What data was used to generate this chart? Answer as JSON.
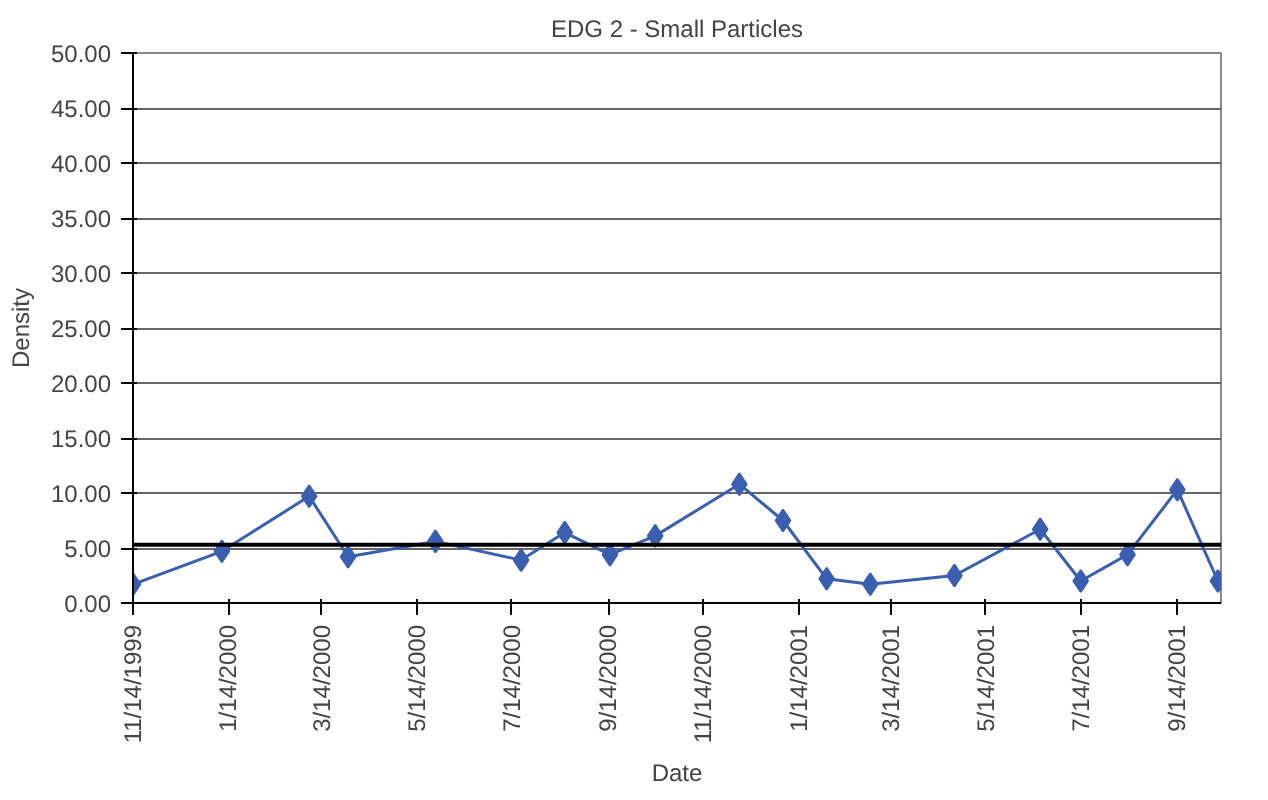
{
  "chart_data": {
    "type": "line",
    "title": "EDG 2 - Small Particles",
    "xlabel": "Date",
    "ylabel": "Density",
    "x": [
      "1999-11-14",
      "2000-01-10",
      "2000-03-06",
      "2000-03-31",
      "2000-05-26",
      "2000-07-20",
      "2000-08-17",
      "2000-09-15",
      "2000-10-14",
      "2000-12-07",
      "2001-01-04",
      "2001-02-01",
      "2001-03-01",
      "2001-04-24",
      "2001-06-18",
      "2001-07-14",
      "2001-08-13",
      "2001-09-14",
      "2001-10-10"
    ],
    "series": [
      {
        "color": "#3a5fb0",
        "values": [
          1.7,
          4.7,
          9.7,
          4.2,
          5.6,
          3.9,
          6.4,
          4.4,
          6.1,
          10.8,
          7.5,
          2.2,
          1.7,
          2.5,
          6.7,
          2.0,
          4.4,
          10.3,
          2.0
        ]
      }
    ],
    "marker": "diamond",
    "line_style": "solid",
    "grid": "y",
    "ylim": [
      0,
      50
    ],
    "yticks": [
      {
        "value": 0,
        "label": "0.00"
      },
      {
        "value": 5,
        "label": "5.00"
      },
      {
        "value": 10,
        "label": "10.00"
      },
      {
        "value": 15,
        "label": "15.00"
      },
      {
        "value": 20,
        "label": "20.00"
      },
      {
        "value": 25,
        "label": "25.00"
      },
      {
        "value": 30,
        "label": "30.00"
      },
      {
        "value": 35,
        "label": "35.00"
      },
      {
        "value": 40,
        "label": "40.00"
      },
      {
        "value": 45,
        "label": "45.00"
      },
      {
        "value": 50,
        "label": "50.00"
      }
    ],
    "xlim": [
      "1999-11-14",
      "2001-10-12"
    ],
    "xticks": [
      {
        "value": "1999-11-14",
        "label": "11/14/1999"
      },
      {
        "value": "2000-01-14",
        "label": "1/14/2000"
      },
      {
        "value": "2000-03-14",
        "label": "3/14/2000"
      },
      {
        "value": "2000-05-14",
        "label": "5/14/2000"
      },
      {
        "value": "2000-07-14",
        "label": "7/14/2000"
      },
      {
        "value": "2000-09-14",
        "label": "9/14/2000"
      },
      {
        "value": "2000-11-14",
        "label": "11/14/2000"
      },
      {
        "value": "2001-01-14",
        "label": "1/14/2001"
      },
      {
        "value": "2001-03-14",
        "label": "3/14/2001"
      },
      {
        "value": "2001-05-14",
        "label": "5/14/2001"
      },
      {
        "value": "2001-07-14",
        "label": "7/14/2001"
      },
      {
        "value": "2001-09-14",
        "label": "9/14/2001"
      }
    ],
    "ref_lines": [
      {
        "axis": "y",
        "value": 5.3,
        "color": "#000000",
        "line_style": "solid"
      }
    ]
  }
}
